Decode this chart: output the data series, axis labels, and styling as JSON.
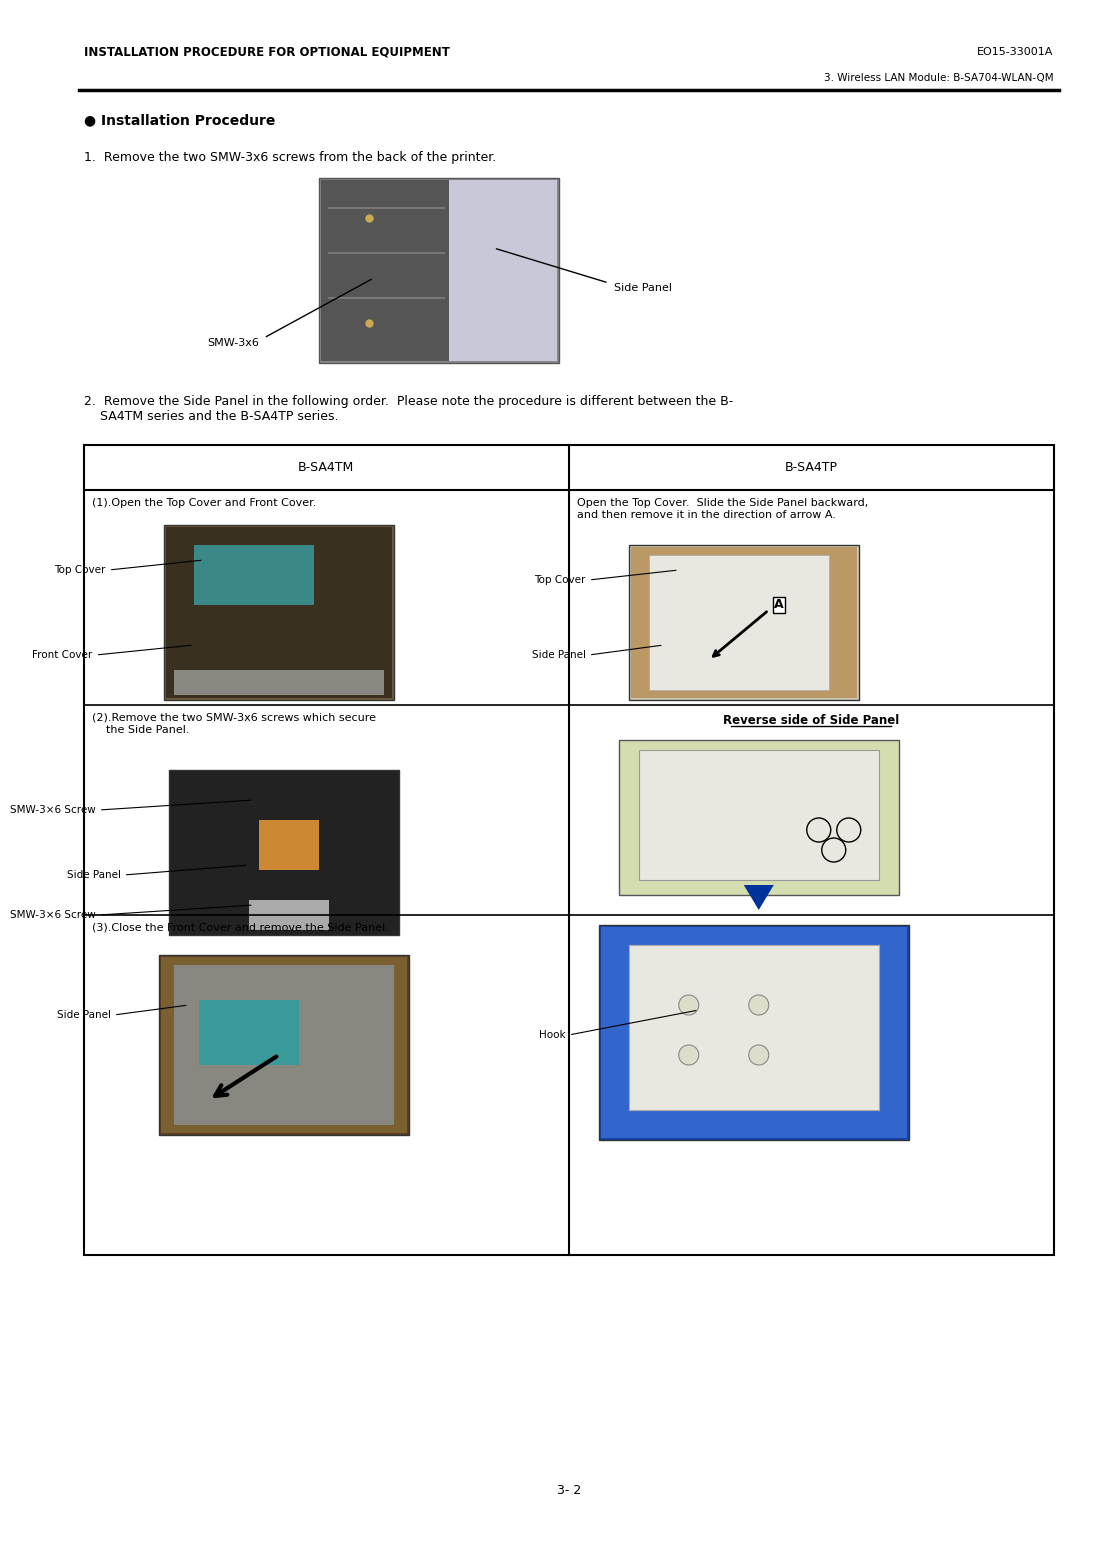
{
  "bg_color": "#ffffff",
  "page_width": 10.8,
  "page_height": 15.28,
  "header_left": "INSTALLATION PROCEDURE FOR OPTIONAL EQUIPMENT",
  "header_right": "EO15-33001A",
  "subheader": "3. Wireless LAN Module: B-SA704-WLAN-QM",
  "section_title": "● Installation Procedure",
  "step1_text": "1.  Remove the two SMW-3x6 screws from the back of the printer.",
  "step2_text": "2.  Remove the Side Panel in the following order.  Please note the procedure is different between the B-\n    SA4TM series and the B-SA4TP series.",
  "col1_header": "B-SA4TM",
  "col2_header": "B-SA4TP",
  "row1_col1_text": "(1).Open the Top Cover and Front Cover.",
  "row1_col1_label1": "Top Cover",
  "row1_col1_label2": "Front Cover",
  "row1_col2_text": "Open the Top Cover.  Slide the Side Panel backward,\nand then remove it in the direction of arrow A.",
  "row1_col2_label1": "Top Cover",
  "row1_col2_label2": "Side Panel",
  "row2_col1_text": "(2).Remove the two SMW-3x6 screws which secure\n    the Side Panel.",
  "row2_col1_label1": "SMW-3×6 Screw",
  "row2_col1_label2": "Side Panel",
  "row2_col1_label3": "SMW-3×6 Screw",
  "row2_col2_title": "Reverse side of Side Panel",
  "row3_col1_text": "(3).Close the Front Cover and remove the Side Panel.",
  "row3_col1_label": "Side Panel",
  "row3_col2_label": "Hook",
  "footer_text": "3- 2"
}
